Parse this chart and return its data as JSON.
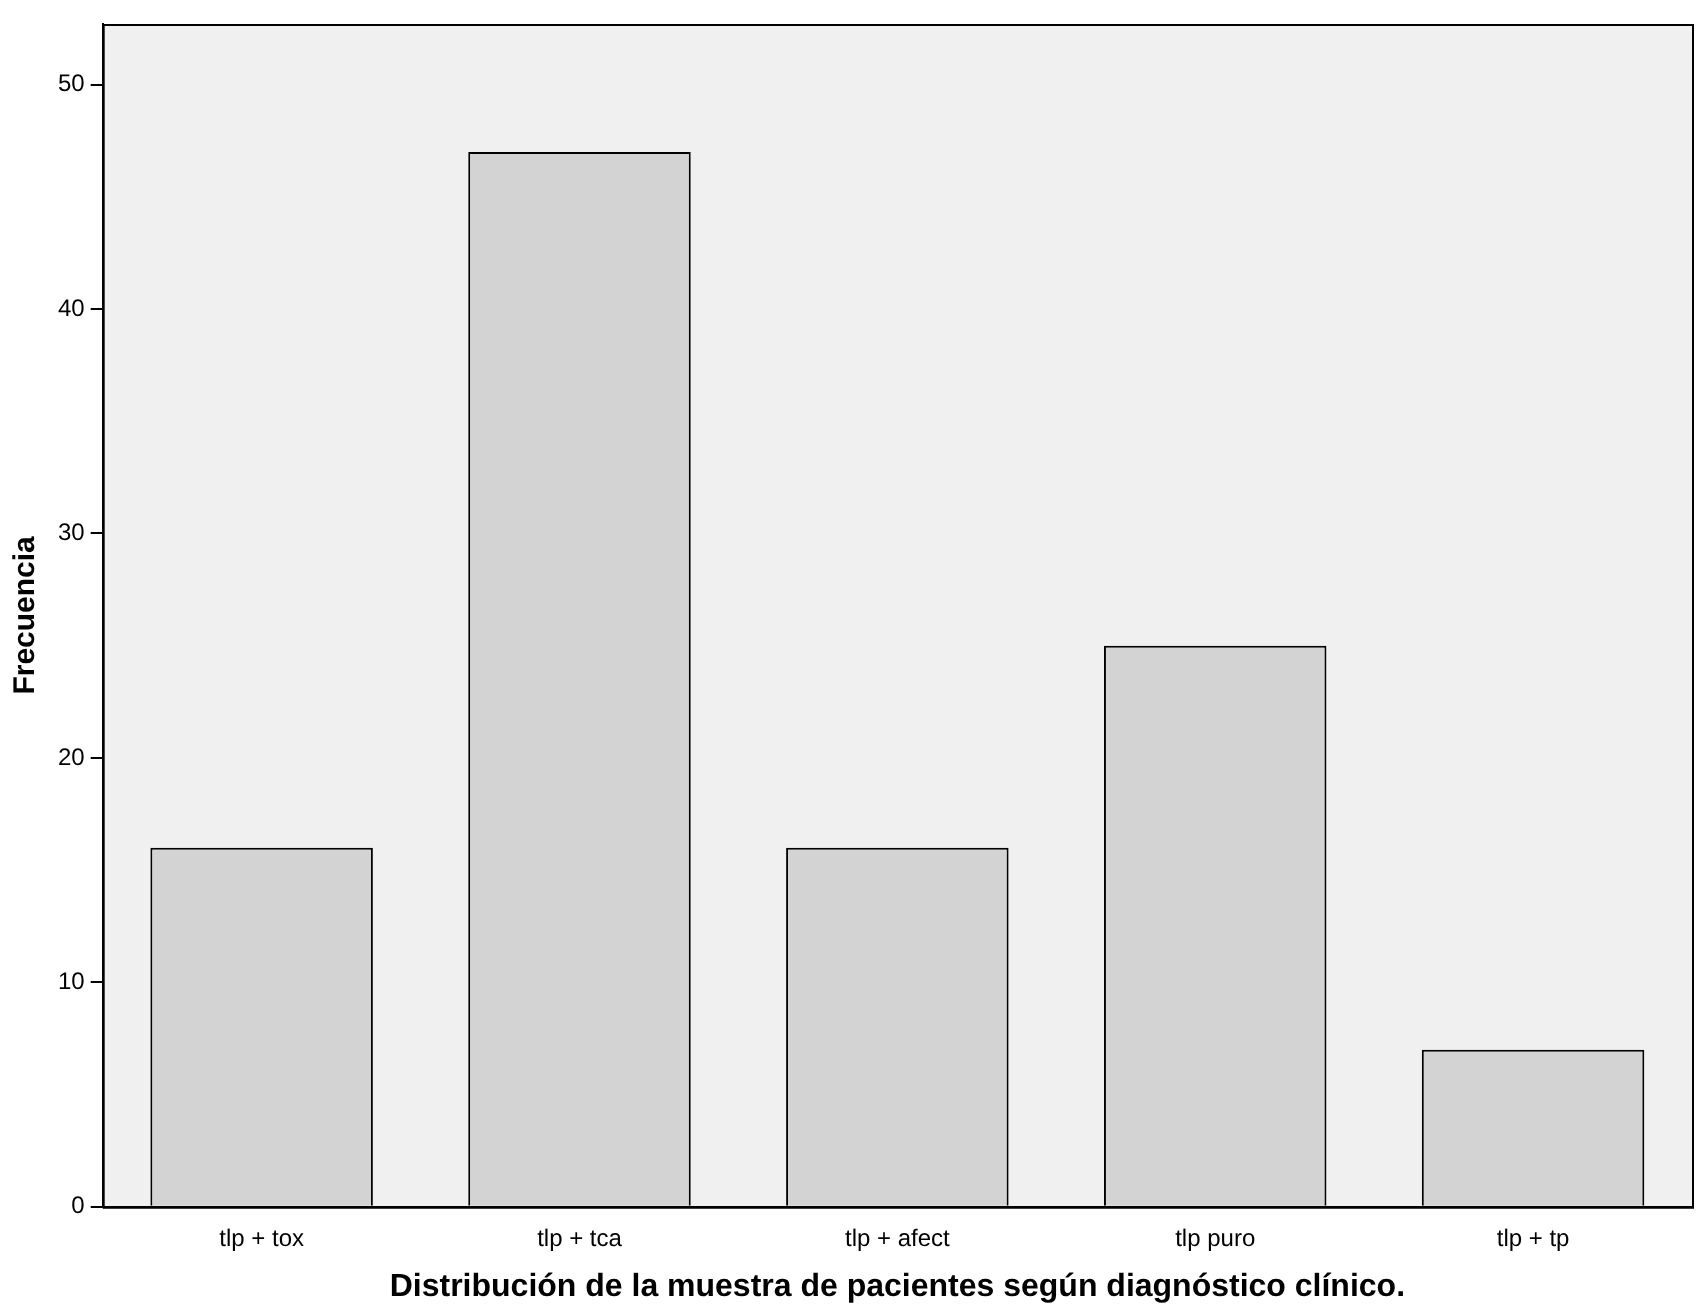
{
  "chart_data": {
    "type": "bar",
    "xlabel": "Distribución de la muestra de pacientes según diagnóstico clínico.",
    "ylabel": "Frecuencia",
    "categories": [
      "tlp + tox",
      "tlp + tca",
      "tlp + afect",
      "tlp puro",
      "tlp + tp"
    ],
    "values": [
      16,
      47,
      16,
      25,
      7
    ],
    "color": "#d3d3d3",
    "ylim": [
      0,
      52.7
    ],
    "yticks": [
      0,
      10,
      20,
      30,
      40,
      50
    ],
    "grid": false,
    "legend": false
  }
}
